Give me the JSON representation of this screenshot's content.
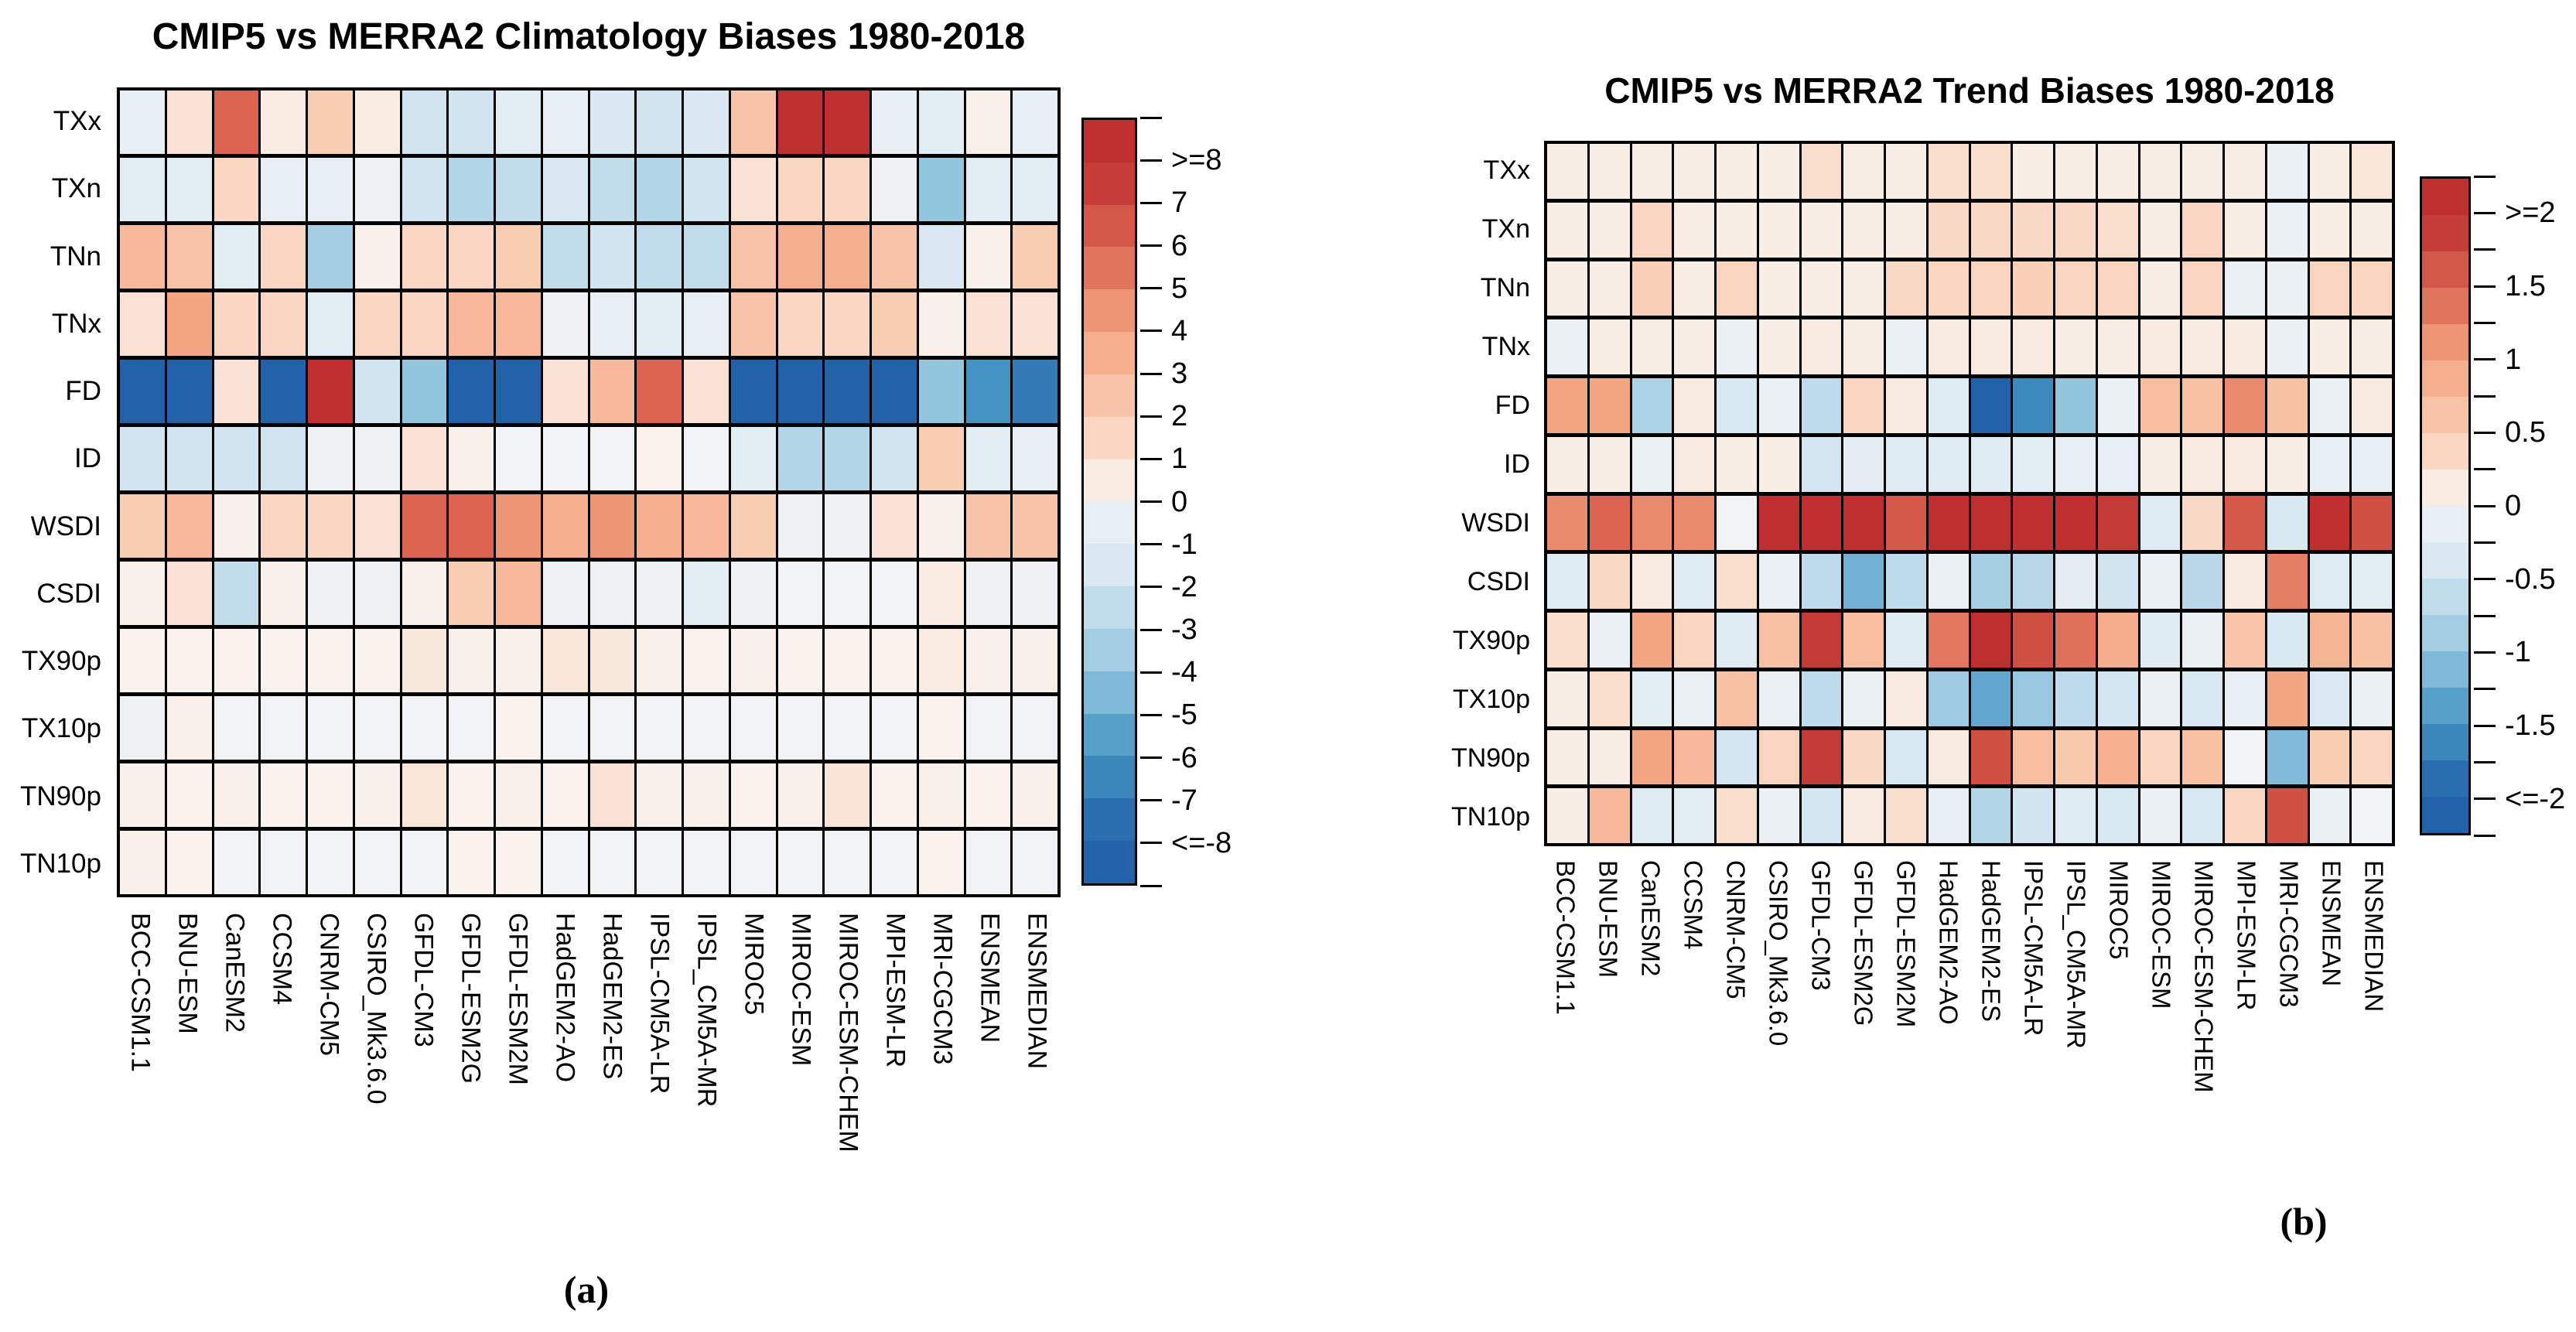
{
  "models": [
    "BCC-CSM1.1",
    "BNU-ESM",
    "CanESM2",
    "CCSM4",
    "CNRM-CM5",
    "CSIRO_Mk3.6.0",
    "GFDL-CM3",
    "GFDL-ESM2G",
    "GFDL-ESM2M",
    "HadGEM2-AO",
    "HadGEM2-ES",
    "IPSL-CM5A-LR",
    "IPSL_CM5A-MR",
    "MIROC5",
    "MIROC-ESM",
    "MIROC-ESM-CHEM",
    "MPI-ESM-LR",
    "MRI-CGCM3",
    "ENSMEAN",
    "ENSMEDIAN"
  ],
  "indices": [
    "TXx",
    "TXn",
    "TNn",
    "TNx",
    "FD",
    "ID",
    "WSDI",
    "CSDI",
    "TX90p",
    "TX10p",
    "TN90p",
    "TN10p"
  ],
  "colors": {
    "max_positive": "#bf2f2f",
    "max_negative": "#2262a8",
    "near_zero": "#f9f6f3",
    "grid_line": "#000000",
    "background": "#ffffff"
  },
  "chart_data": [
    {
      "type": "heatmap",
      "id": "climatology",
      "title": "CMIP5 vs MERRA2 Climatology Biases 1980-2018",
      "caption": "(a)",
      "legend_position": "right",
      "rows": [
        "TXx",
        "TXn",
        "TNn",
        "TNx",
        "FD",
        "ID",
        "WSDI",
        "CSDI",
        "TX90p",
        "TX10p",
        "TN90p",
        "TN10p"
      ],
      "columns": [
        "BCC-CSM1.1",
        "BNU-ESM",
        "CanESM2",
        "CCSM4",
        "CNRM-CM5",
        "CSIRO_Mk3.6.0",
        "GFDL-CM3",
        "GFDL-ESM2G",
        "GFDL-ESM2M",
        "HadGEM2-AO",
        "HadGEM2-ES",
        "IPSL-CM5A-LR",
        "IPSL_CM5A-MR",
        "MIROC5",
        "MIROC-ESM",
        "MIROC-ESM-CHEM",
        "MPI-ESM-LR",
        "MRI-CGCM3",
        "ENSMEAN",
        "ENSMEDIAN"
      ],
      "scale": {
        "min": -8,
        "max": 8,
        "band_step": 1,
        "tick_labels": [
          ">=8",
          "7",
          "6",
          "5",
          "4",
          "3",
          "2",
          "1",
          "0",
          "-1",
          "-2",
          "-3",
          "-4",
          "-5",
          "-6",
          "-7",
          "<=-8"
        ],
        "label_every": 1
      },
      "values": [
        [
          -0.5,
          1,
          6,
          0.5,
          2,
          0.5,
          -2,
          -2,
          -1,
          -0.5,
          -1.5,
          -2,
          -1.5,
          2.5,
          8,
          8,
          -0.5,
          -1,
          0.3,
          -0.5
        ],
        [
          -1,
          -1,
          1.5,
          -0.5,
          -0.5,
          -0.3,
          -2,
          -3,
          -2.5,
          -1.5,
          -2.5,
          -3,
          -2,
          1,
          1.5,
          1.5,
          -0.3,
          -4,
          -1,
          -1
        ],
        [
          3,
          2.5,
          -1,
          1.5,
          -3.5,
          0.3,
          1.5,
          1.5,
          2,
          -2.5,
          -2,
          -2.5,
          -2.5,
          2.5,
          3.5,
          3.5,
          2.5,
          -1.5,
          0.3,
          2
        ],
        [
          1,
          4,
          1.5,
          1.5,
          -1,
          1.5,
          1.5,
          3,
          3,
          -0.3,
          -0.5,
          -1,
          -0.5,
          2.5,
          1.5,
          1.5,
          2,
          0.3,
          1,
          1
        ],
        [
          -8,
          -8,
          1,
          -8,
          8,
          -2,
          -4,
          -8,
          -8,
          1,
          3,
          6,
          1,
          -8,
          -8,
          -8,
          -8,
          -4,
          -6,
          -7
        ],
        [
          -2,
          -2,
          -2,
          -2,
          -0.3,
          -0.3,
          1,
          0.3,
          -0.2,
          -0.2,
          -0.2,
          0.2,
          -0.2,
          -1,
          -3,
          -3,
          -2,
          2,
          -1,
          -0.5
        ],
        [
          2,
          3,
          0.3,
          1.5,
          1.5,
          1,
          6,
          6,
          4.5,
          3.5,
          4.5,
          3.5,
          3,
          2,
          -0.3,
          -0.3,
          1,
          0.3,
          2.5,
          2.5
        ],
        [
          0.3,
          1,
          -2.5,
          0.3,
          -0.3,
          -0.3,
          0.3,
          2,
          3,
          -0.3,
          -0.3,
          -0.3,
          -1,
          -0.3,
          -0.2,
          -0.2,
          -0.2,
          0.5,
          -0.3,
          -0.3
        ],
        [
          0.2,
          0.2,
          0.2,
          0.2,
          0.2,
          0.2,
          0.7,
          0.3,
          0.3,
          0.8,
          0.7,
          0.3,
          0.2,
          0.3,
          0.2,
          0.2,
          0.2,
          0.5,
          0.3,
          0.3
        ],
        [
          -0.3,
          0.3,
          -0.2,
          -0.2,
          -0.2,
          -0.2,
          -0.2,
          -0.2,
          0.2,
          -0.2,
          -0.2,
          -0.2,
          -0.2,
          -0.2,
          -0.2,
          -0.2,
          -0.2,
          0.2,
          -0.2,
          -0.2
        ],
        [
          0.3,
          0.2,
          0.3,
          0.2,
          0.2,
          0.3,
          0.8,
          0.2,
          0.3,
          0.2,
          1,
          0.3,
          0.3,
          0.2,
          0.3,
          0.9,
          0.2,
          0.3,
          0.2,
          0.3
        ],
        [
          0.3,
          0.2,
          -0.2,
          -0.2,
          -0.2,
          -0.2,
          -0.2,
          0.2,
          0.2,
          -0.2,
          -0.2,
          -0.2,
          -0.2,
          -0.2,
          -0.2,
          -0.2,
          -0.2,
          0.2,
          -0.2,
          -0.2
        ]
      ]
    },
    {
      "type": "heatmap",
      "id": "trend",
      "title": "CMIP5 vs MERRA2 Trend Biases 1980-2018",
      "caption": "(b)",
      "legend_position": "right",
      "rows": [
        "TXx",
        "TXn",
        "TNn",
        "TNx",
        "FD",
        "ID",
        "WSDI",
        "CSDI",
        "TX90p",
        "TX10p",
        "TN90p",
        "TN10p"
      ],
      "columns": [
        "BCC-CSM1.1",
        "BNU-ESM",
        "CanESM2",
        "CCSM4",
        "CNRM-CM5",
        "CSIRO_Mk3.6.0",
        "GFDL-CM3",
        "GFDL-ESM2G",
        "GFDL-ESM2M",
        "HadGEM2-AO",
        "HadGEM2-ES",
        "IPSL-CM5A-LR",
        "IPSL_CM5A-MR",
        "MIROC5",
        "MIROC-ESM",
        "MIROC-ESM-CHEM",
        "MPI-ESM-LR",
        "MRI-CGCM3",
        "ENSMEAN",
        "ENSMEDIAN"
      ],
      "scale": {
        "min": -2,
        "max": 2,
        "band_step": 0.25,
        "tick_labels": [
          ">=2",
          "1.5",
          "1",
          "0.5",
          "0",
          "-0.5",
          "-1",
          "-1.5",
          "<=-2"
        ],
        "label_every": 2
      },
      "values": [
        [
          0.1,
          0.1,
          0.1,
          0.1,
          0.1,
          0.1,
          0.3,
          0.1,
          0.1,
          0.3,
          0.3,
          0.1,
          0.1,
          0.1,
          0.1,
          0.1,
          0.1,
          -0.1,
          0.1,
          0.2
        ],
        [
          0.1,
          0.1,
          0.4,
          0.1,
          0.1,
          0.1,
          0.1,
          0.1,
          0.1,
          0.35,
          0.35,
          0.35,
          0.35,
          0.3,
          0.1,
          0.4,
          0.1,
          -0.1,
          0.1,
          0.1
        ],
        [
          0.1,
          0.1,
          0.45,
          0.1,
          0.4,
          0.1,
          0.1,
          0.1,
          0.35,
          0.4,
          0.4,
          0.45,
          0.4,
          0.4,
          0.1,
          0.4,
          -0.1,
          -0.1,
          0.4,
          0.4
        ],
        [
          -0.1,
          0.1,
          0.1,
          0.1,
          -0.1,
          0.1,
          0.15,
          0.1,
          -0.1,
          0.15,
          0.15,
          0.15,
          0.1,
          0.1,
          0.15,
          0.15,
          0.15,
          -0.1,
          0.1,
          0.1
        ],
        [
          1,
          1,
          -0.8,
          0.15,
          -0.4,
          -0.1,
          -0.65,
          0.4,
          0.15,
          -0.3,
          -2,
          -1.6,
          -1,
          -0.1,
          0.7,
          0.65,
          1.2,
          0.65,
          -0.1,
          0.15
        ],
        [
          0.1,
          0.1,
          -0.1,
          0.15,
          0.1,
          0.1,
          -0.45,
          -0.2,
          -0.3,
          -0.3,
          -0.3,
          -0.25,
          -0.15,
          -0.15,
          0.1,
          0.15,
          0.15,
          0.1,
          -0.15,
          -0.15
        ],
        [
          1.2,
          1.5,
          1.2,
          1.2,
          -0.05,
          2,
          2,
          2,
          1.6,
          2,
          2,
          2,
          2,
          1.9,
          -0.3,
          0.35,
          1.6,
          -0.4,
          2,
          1.7
        ],
        [
          -0.3,
          0.35,
          0.15,
          -0.3,
          0.3,
          -0.1,
          -0.65,
          -1.2,
          -0.65,
          -0.1,
          -0.85,
          -0.7,
          -0.2,
          -0.5,
          -0.1,
          -0.7,
          0.15,
          1.3,
          -0.3,
          -0.25
        ],
        [
          0.3,
          -0.1,
          1,
          0.4,
          -0.3,
          0.65,
          1.9,
          0.7,
          -0.3,
          1.35,
          2,
          1.7,
          1.4,
          0.9,
          -0.3,
          -0.1,
          0.6,
          -0.4,
          0.8,
          0.65
        ],
        [
          0.1,
          0.3,
          -0.25,
          -0.1,
          0.65,
          -0.1,
          -0.65,
          -0.1,
          0.15,
          -0.9,
          -1.3,
          -0.95,
          -0.65,
          -0.45,
          -0.1,
          -0.4,
          -0.15,
          1,
          -0.35,
          -0.1
        ],
        [
          0.1,
          0.1,
          1,
          0.75,
          -0.45,
          0.4,
          1.9,
          0.35,
          -0.4,
          0.15,
          1.7,
          0.7,
          0.55,
          0.85,
          0.4,
          0.65,
          -0.05,
          -1.1,
          0.5,
          0.4
        ],
        [
          0.1,
          0.75,
          -0.3,
          -0.25,
          0.3,
          -0.1,
          -0.45,
          0.15,
          0.3,
          -0.15,
          -0.75,
          -0.5,
          -0.3,
          -0.4,
          -0.1,
          -0.4,
          0.4,
          1.7,
          -0.1,
          -0.05
        ]
      ]
    }
  ]
}
